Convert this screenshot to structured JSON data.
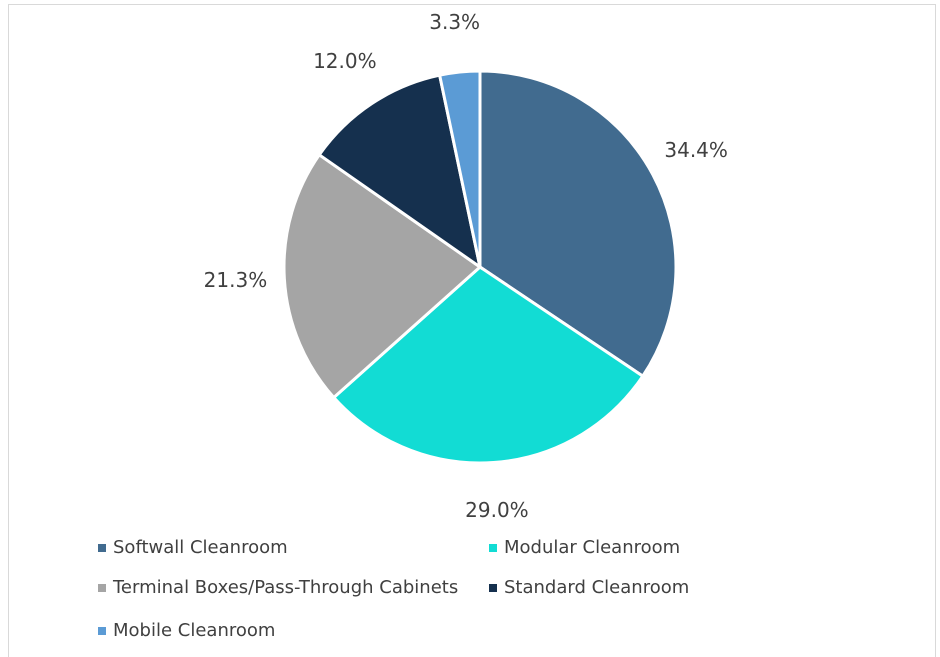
{
  "chart_data": {
    "type": "pie",
    "categories": [
      "Softwall Cleanroom",
      "Modular Cleanroom",
      "Terminal Boxes/Pass-Through Cabinets",
      "Standard Cleanroom",
      "Mobile Cleanroom"
    ],
    "values": [
      34.4,
      29.0,
      21.3,
      12.0,
      3.3
    ],
    "labels": [
      "34.4%",
      "29.0%",
      "21.3%",
      "12.0%",
      "3.3%"
    ],
    "colors": [
      "#416b8f",
      "#12dcd4",
      "#a5a5a5",
      "#15304e",
      "#5b9bd5"
    ],
    "legend_position": "bottom"
  }
}
